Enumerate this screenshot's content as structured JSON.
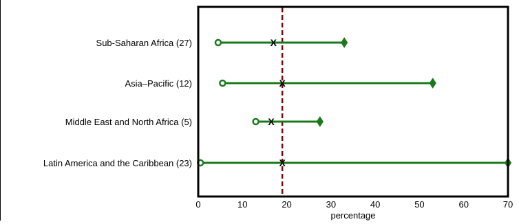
{
  "chart_data": {
    "type": "range-dot",
    "title": "",
    "xlabel": "percentage",
    "ylabel": "",
    "xlim": [
      0,
      70
    ],
    "xticks": [
      "0",
      "10",
      "20",
      "30",
      "40",
      "50",
      "60",
      "70"
    ],
    "reference_line": {
      "x": 19,
      "style": "dashed",
      "color": "#8b0000"
    },
    "categories": [
      "Sub-Saharan Africa (27)",
      "Asia–Pacific (12)",
      "Middle East and North Africa (5)",
      "Latin America and the Caribbean (23)"
    ],
    "min": [
      4.5,
      5.5,
      13,
      0.5
    ],
    "mean": [
      17,
      19,
      16.5,
      19
    ],
    "max": [
      33,
      53,
      27.5,
      70
    ],
    "mean_marker": "X",
    "colors": {
      "range": "#1a7a1a",
      "reference": "#8b0000",
      "frame": "#000000"
    }
  }
}
